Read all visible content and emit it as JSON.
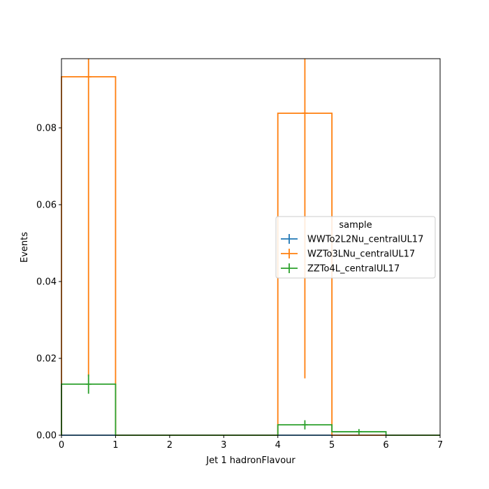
{
  "chart_data": {
    "type": "histogram-step",
    "xlabel": "Jet 1 hadronFlavour",
    "ylabel": "Events",
    "xlim": [
      0,
      7
    ],
    "ylim": [
      0,
      0.098
    ],
    "xticks": [
      "0",
      "1",
      "2",
      "3",
      "4",
      "5",
      "6",
      "7"
    ],
    "yticks": [
      "0.00",
      "0.02",
      "0.04",
      "0.06",
      "0.08"
    ],
    "bin_edges": [
      0,
      1,
      2,
      3,
      4,
      5,
      6,
      7
    ],
    "legend": {
      "title": "sample",
      "placement": "center-right"
    },
    "series": [
      {
        "name": "WWTo2L2Nu_centralUL17",
        "color": "#1f77b4",
        "values": [
          0,
          0,
          0,
          0,
          0,
          0,
          0
        ],
        "errors": [
          0,
          0,
          0,
          0,
          0,
          0,
          0
        ]
      },
      {
        "name": "WZTo3LNu_centralUL17",
        "color": "#ff7f0e",
        "values": [
          0.0933,
          0,
          0,
          0,
          0.0838,
          0,
          0
        ],
        "errors": [
          0.078,
          0,
          0,
          0,
          0.069,
          0,
          0
        ]
      },
      {
        "name": "ZZTo4L_centralUL17",
        "color": "#2ca02c",
        "values": [
          0.0133,
          0,
          0,
          0,
          0.0027,
          0.0009,
          0
        ],
        "errors": [
          0.0025,
          0,
          0,
          0,
          0.0012,
          0.0007,
          0
        ]
      }
    ]
  }
}
